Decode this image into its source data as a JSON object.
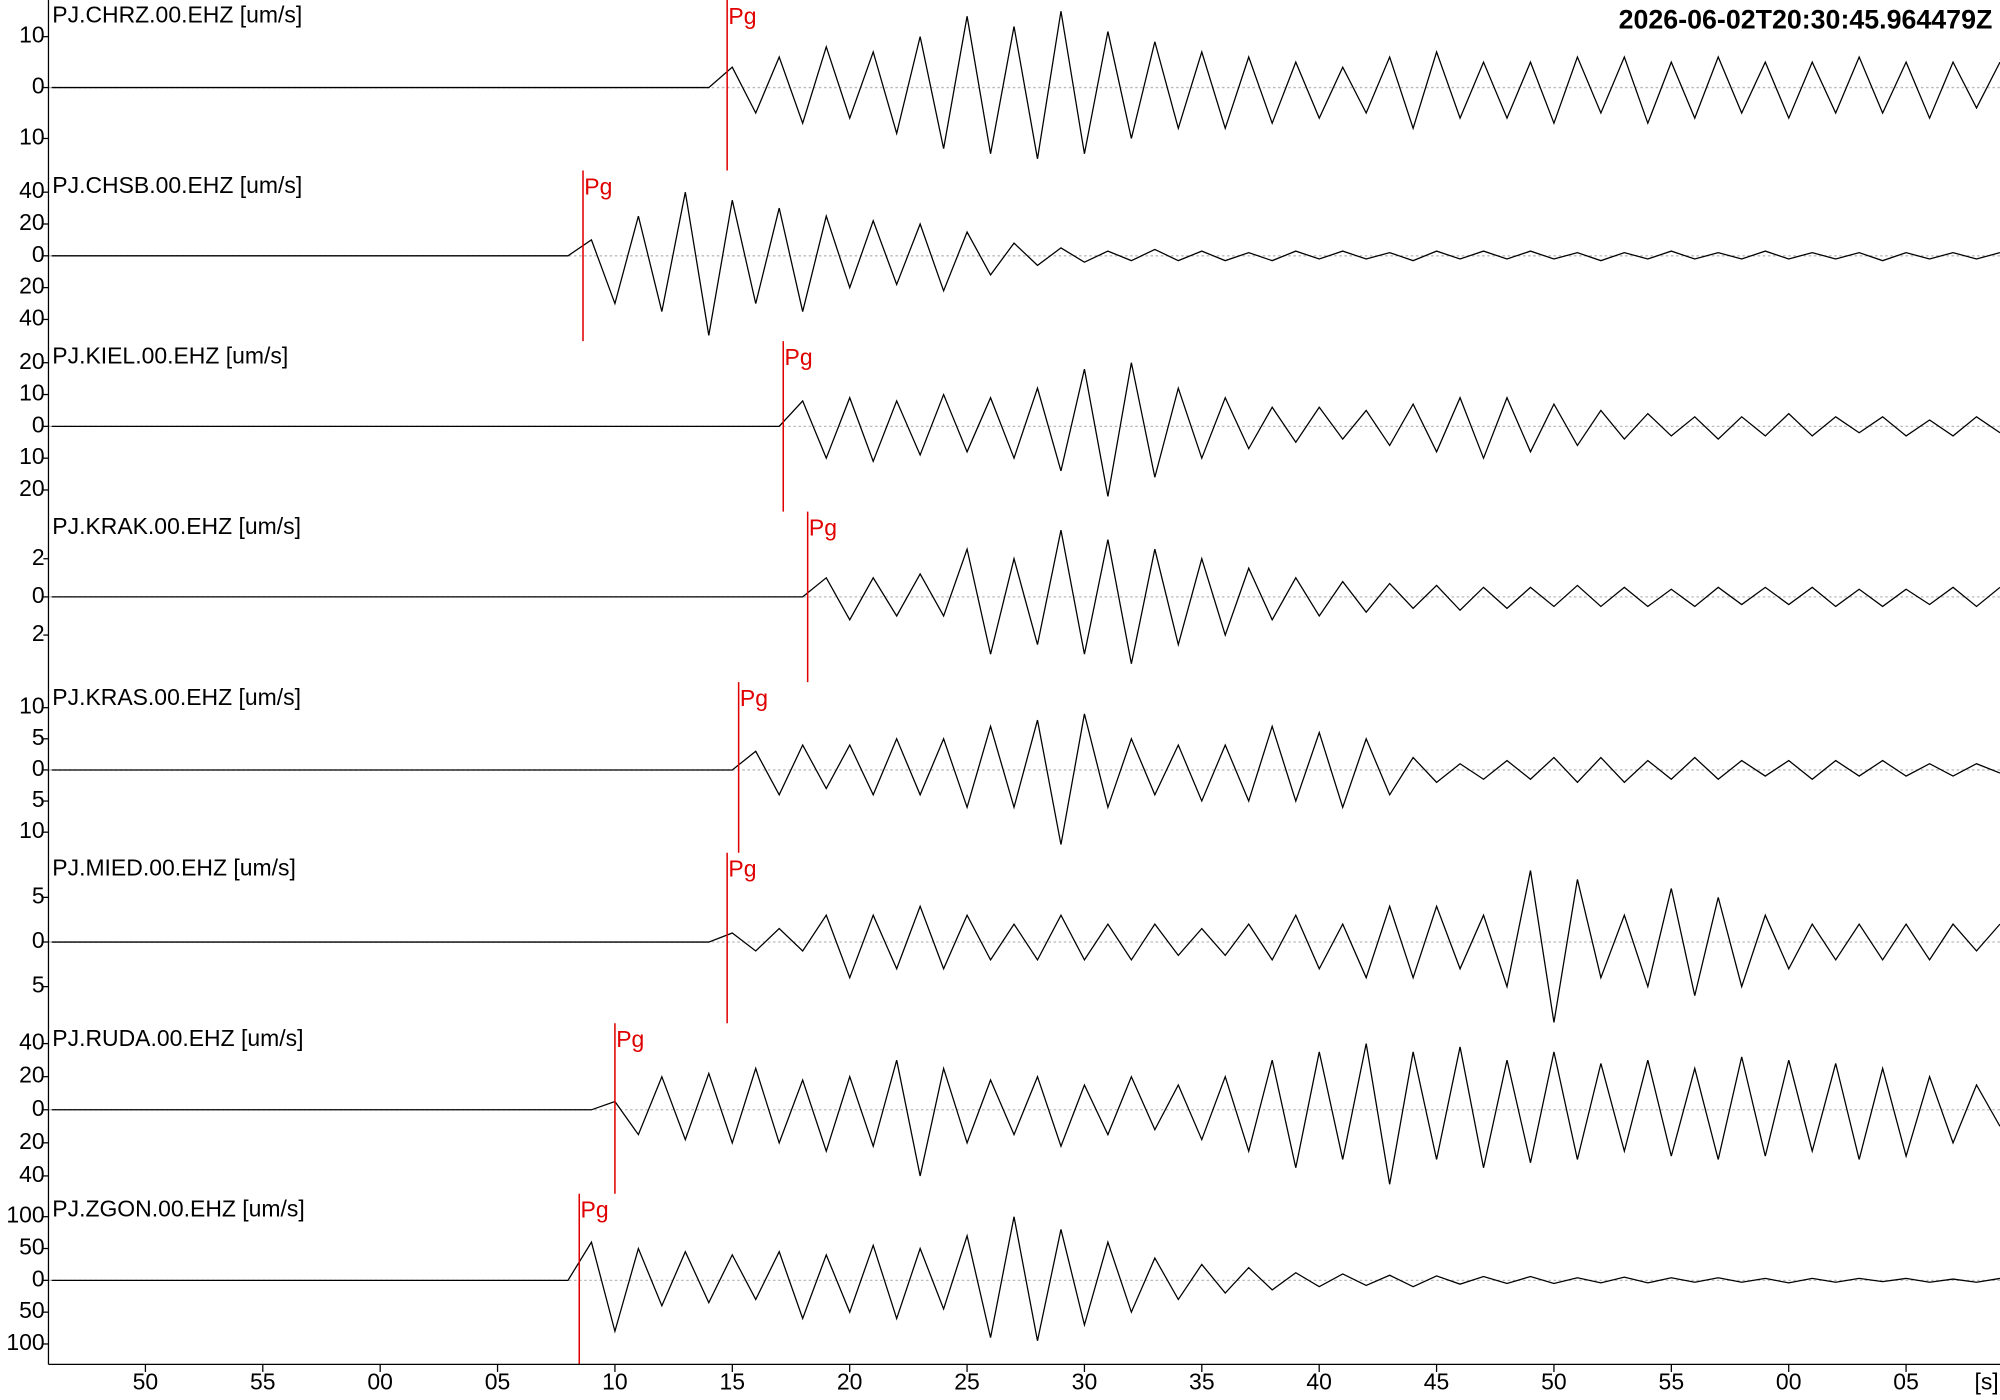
{
  "chart_data": {
    "type": "seismogram",
    "timestamp": "2026-06-02T20:30:45.964479Z",
    "xlabel": "[s]",
    "xlim": [
      -14.13,
      69.0
    ],
    "xticks": [
      {
        "value": -10,
        "label": "50"
      },
      {
        "value": -5,
        "label": "55"
      },
      {
        "value": 0,
        "label": "00"
      },
      {
        "value": 5,
        "label": "05"
      },
      10,
      15,
      20,
      25,
      30,
      35,
      40,
      45,
      50,
      55,
      {
        "value": 60,
        "label": "00"
      },
      {
        "value": 65,
        "label": "05"
      }
    ],
    "x": [
      -14,
      -13,
      -12,
      -11,
      -10,
      -9,
      -8,
      -7,
      -6,
      -5,
      -4,
      -3,
      -2,
      -1,
      0,
      1,
      2,
      3,
      4,
      5,
      6,
      7,
      8,
      9,
      10,
      11,
      12,
      13,
      14,
      15,
      16,
      17,
      18,
      19,
      20,
      21,
      22,
      23,
      24,
      25,
      26,
      27,
      28,
      29,
      30,
      31,
      32,
      33,
      34,
      35,
      36,
      37,
      38,
      39,
      40,
      41,
      42,
      43,
      44,
      45,
      46,
      47,
      48,
      49,
      50,
      51,
      52,
      53,
      54,
      55,
      56,
      57,
      58,
      59,
      60,
      61,
      62,
      63,
      64,
      65,
      66,
      67,
      68,
      69
    ],
    "traces": [
      {
        "name": "PJ.CHRZ.00.EHZ [um/s]",
        "pick_label": "Pg",
        "pick_time": 14.78,
        "ylim": [
          -16.3,
          17.2
        ],
        "yticks": [
          10,
          0,
          {
            "value": -10,
            "label": "10"
          }
        ],
        "values": [
          0,
          0,
          0,
          0,
          0,
          0,
          0,
          0,
          0,
          0,
          0,
          0,
          0,
          0,
          0,
          0,
          0,
          0,
          0,
          0,
          0,
          0,
          0,
          0,
          0,
          0,
          0,
          0,
          0,
          4,
          -5,
          6,
          -7,
          8,
          -6,
          7,
          -9,
          10,
          -12,
          14,
          -13,
          12,
          -14,
          15,
          -13,
          11,
          -10,
          9,
          -8,
          7,
          -8,
          6,
          -7,
          5,
          -6,
          4,
          -5,
          6,
          -8,
          7,
          -6,
          5,
          -6,
          5,
          -7,
          6,
          -5,
          6,
          -7,
          5,
          -6,
          6,
          -5,
          5,
          -6,
          5,
          -5,
          6,
          -5,
          5,
          -6,
          5,
          -4,
          5
        ]
      },
      {
        "name": "PJ.CHSB.00.EHZ [um/s]",
        "pick_label": "Pg",
        "pick_time": 8.64,
        "ylim": [
          -53.6,
          53.6
        ],
        "yticks": [
          40,
          20,
          0,
          {
            "value": -20,
            "label": "20"
          },
          {
            "value": -40,
            "label": "40"
          }
        ],
        "values": [
          0,
          0,
          0,
          0,
          0,
          0,
          0,
          0,
          0,
          0,
          0,
          0,
          0,
          0,
          0,
          0,
          0,
          0,
          0,
          0,
          0,
          0,
          0,
          10,
          -30,
          25,
          -35,
          40,
          -50,
          35,
          -30,
          30,
          -35,
          25,
          -20,
          22,
          -18,
          20,
          -22,
          15,
          -12,
          8,
          -6,
          5,
          -4,
          3,
          -3,
          4,
          -3,
          3,
          -3,
          2,
          -3,
          3,
          -2,
          3,
          -2,
          2,
          -3,
          3,
          -2,
          3,
          -2,
          3,
          -2,
          2,
          -3,
          2,
          -2,
          3,
          -2,
          2,
          -2,
          3,
          -2,
          2,
          -2,
          2,
          -3,
          2,
          -2,
          2,
          -2,
          2
        ]
      },
      {
        "name": "PJ.KIEL.00.EHZ [um/s]",
        "pick_label": "Pg",
        "pick_time": 17.17,
        "ylim": [
          -26.8,
          26.8
        ],
        "yticks": [
          20,
          10,
          0,
          {
            "value": -10,
            "label": "10"
          },
          {
            "value": -20,
            "label": "20"
          }
        ],
        "values": [
          0,
          0,
          0,
          0,
          0,
          0,
          0,
          0,
          0,
          0,
          0,
          0,
          0,
          0,
          0,
          0,
          0,
          0,
          0,
          0,
          0,
          0,
          0,
          0,
          0,
          0,
          0,
          0,
          0,
          0,
          0,
          0,
          8,
          -10,
          9,
          -11,
          8,
          -9,
          10,
          -8,
          9,
          -10,
          12,
          -14,
          18,
          -22,
          20,
          -16,
          12,
          -10,
          9,
          -7,
          6,
          -5,
          6,
          -4,
          5,
          -6,
          7,
          -8,
          9,
          -10,
          9,
          -8,
          7,
          -6,
          5,
          -4,
          4,
          -3,
          3,
          -4,
          3,
          -3,
          4,
          -3,
          3,
          -2,
          3,
          -3,
          2,
          -3,
          3,
          -2
        ]
      },
      {
        "name": "PJ.KRAK.00.EHZ [um/s]",
        "pick_label": "Pg",
        "pick_time": 18.21,
        "ylim": [
          -4.47,
          4.47
        ],
        "yticks": [
          2,
          0,
          {
            "value": -2,
            "label": "2"
          }
        ],
        "values": [
          0,
          0,
          0,
          0,
          0,
          0,
          0,
          0,
          0,
          0,
          0,
          0,
          0,
          0,
          0,
          0,
          0,
          0,
          0,
          0,
          0,
          0,
          0,
          0,
          0,
          0,
          0,
          0,
          0,
          0,
          0,
          0,
          0,
          1,
          -1.2,
          1,
          -1,
          1.2,
          -1,
          2.5,
          -3,
          2,
          -2.5,
          3.5,
          -3,
          3,
          -3.5,
          2.5,
          -2.5,
          2,
          -2,
          1.5,
          -1.2,
          1,
          -1,
          0.8,
          -0.8,
          0.7,
          -0.6,
          0.6,
          -0.7,
          0.5,
          -0.6,
          0.5,
          -0.5,
          0.6,
          -0.5,
          0.5,
          -0.5,
          0.4,
          -0.5,
          0.5,
          -0.4,
          0.5,
          -0.4,
          0.5,
          -0.5,
          0.4,
          -0.5,
          0.4,
          -0.4,
          0.5,
          -0.5,
          0.5
        ]
      },
      {
        "name": "PJ.KRAS.00.EHZ [um/s]",
        "pick_label": "Pg",
        "pick_time": 15.27,
        "ylim": [
          -13.3,
          14.1
        ],
        "yticks": [
          10,
          5,
          0,
          {
            "value": -5,
            "label": "5"
          },
          {
            "value": -10,
            "label": "10"
          }
        ],
        "values": [
          0,
          0,
          0,
          0,
          0,
          0,
          0,
          0,
          0,
          0,
          0,
          0,
          0,
          0,
          0,
          0,
          0,
          0,
          0,
          0,
          0,
          0,
          0,
          0,
          0,
          0,
          0,
          0,
          0,
          0,
          3,
          -4,
          4,
          -3,
          4,
          -4,
          5,
          -4,
          5,
          -6,
          7,
          -6,
          8,
          -12,
          9,
          -6,
          5,
          -4,
          4,
          -5,
          4,
          -5,
          7,
          -5,
          6,
          -6,
          5,
          -4,
          2,
          -2,
          1,
          -1.5,
          1.5,
          -1.5,
          2,
          -2,
          2,
          -2,
          1.5,
          -1.5,
          2,
          -1.5,
          1.5,
          -1,
          1.5,
          -1.5,
          1.5,
          -1,
          1.5,
          -1,
          1,
          -1,
          1,
          -0.5
        ]
      },
      {
        "name": "PJ.MIED.00.EHZ [um/s]",
        "pick_label": "Pg",
        "pick_time": 14.78,
        "ylim": [
          -9.1,
          10
        ],
        "yticks": [
          5,
          0,
          {
            "value": -5,
            "label": "5"
          }
        ],
        "values": [
          0,
          0,
          0,
          0,
          0,
          0,
          0,
          0,
          0,
          0,
          0,
          0,
          0,
          0,
          0,
          0,
          0,
          0,
          0,
          0,
          0,
          0,
          0,
          0,
          0,
          0,
          0,
          0,
          0,
          1,
          -1,
          1.5,
          -1,
          3,
          -4,
          3,
          -3,
          4,
          -3,
          3,
          -2,
          2,
          -2,
          3,
          -2,
          2,
          -2,
          2,
          -1.5,
          1.5,
          -1.5,
          2,
          -2,
          3,
          -3,
          2,
          -4,
          4,
          -4,
          4,
          -3,
          3,
          -5,
          8,
          -9,
          7,
          -4,
          3,
          -5,
          6,
          -6,
          5,
          -5,
          3,
          -3,
          2,
          -2,
          2,
          -2,
          2,
          -2,
          2,
          -1,
          2
        ]
      },
      {
        "name": "PJ.RUDA.00.EHZ [um/s]",
        "pick_label": "Pg",
        "pick_time": 10.0,
        "ylim": [
          -50.8,
          52.3
        ],
        "yticks": [
          40,
          20,
          0,
          {
            "value": -20,
            "label": "20"
          },
          {
            "value": -40,
            "label": "40"
          }
        ],
        "values": [
          0,
          0,
          0,
          0,
          0,
          0,
          0,
          0,
          0,
          0,
          0,
          0,
          0,
          0,
          0,
          0,
          0,
          0,
          0,
          0,
          0,
          0,
          0,
          0,
          5,
          -15,
          20,
          -18,
          22,
          -20,
          25,
          -20,
          18,
          -25,
          20,
          -22,
          30,
          -40,
          25,
          -20,
          18,
          -15,
          20,
          -22,
          15,
          -15,
          20,
          -12,
          15,
          -18,
          20,
          -25,
          30,
          -35,
          35,
          -30,
          40,
          -45,
          35,
          -30,
          38,
          -35,
          30,
          -32,
          35,
          -30,
          28,
          -25,
          30,
          -28,
          25,
          -30,
          32,
          -28,
          30,
          -25,
          28,
          -30,
          25,
          -28,
          20,
          -20,
          15,
          -10
        ]
      },
      {
        "name": "PJ.ZGON.00.EHZ [um/s]",
        "pick_label": "Pg",
        "pick_time": 8.48,
        "ylim": [
          -132,
          136
        ],
        "yticks": [
          100,
          50,
          0,
          {
            "value": -50,
            "label": "50"
          },
          {
            "value": -100,
            "label": "100"
          }
        ],
        "values": [
          0,
          0,
          0,
          0,
          0,
          0,
          0,
          0,
          0,
          0,
          0,
          0,
          0,
          0,
          0,
          0,
          0,
          0,
          0,
          0,
          0,
          0,
          0,
          60,
          -80,
          50,
          -40,
          45,
          -35,
          40,
          -30,
          45,
          -60,
          40,
          -50,
          55,
          -60,
          50,
          -45,
          70,
          -90,
          100,
          -95,
          80,
          -70,
          60,
          -50,
          35,
          -30,
          25,
          -20,
          20,
          -15,
          12,
          -10,
          10,
          -8,
          8,
          -10,
          7,
          -6,
          6,
          -5,
          6,
          -5,
          4,
          -4,
          5,
          -4,
          4,
          -3,
          4,
          -3,
          3,
          -4,
          3,
          -3,
          3,
          -2,
          3,
          -3,
          2,
          -3,
          3
        ]
      }
    ]
  }
}
